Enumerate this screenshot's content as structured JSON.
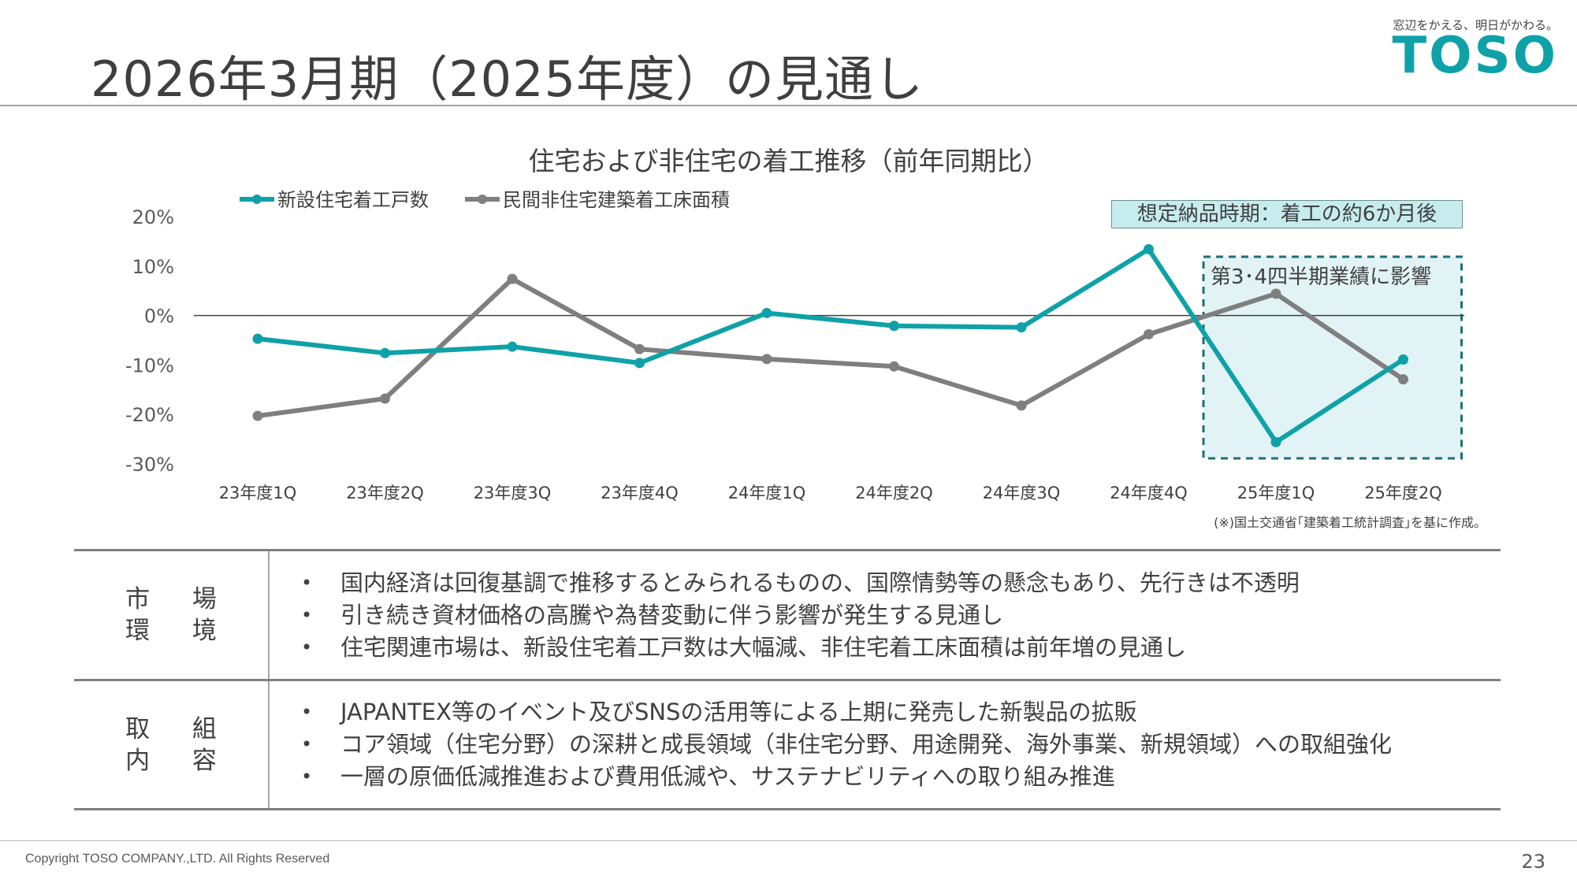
{
  "page": {
    "title": "2026年3月期（2025年度）の見通し",
    "logo_tagline": "窓辺をかえる、明日がかわる。",
    "logo_text": "TOSO",
    "page_number": "23",
    "copyright": "Copyright TOSO COMPANY.,LTD. All Rights Reserved"
  },
  "colors": {
    "teal": "#0fa1a8",
    "gray": "#7f7f7f",
    "highlight_fill": "#e1f3f5",
    "label_fill": "#c7ecee"
  },
  "chart_data": {
    "type": "line",
    "title": "住宅および非住宅の着工推移（前年同期比）",
    "categories": [
      "23年度1Q",
      "23年度2Q",
      "23年度3Q",
      "23年度4Q",
      "24年度1Q",
      "24年度2Q",
      "24年度3Q",
      "24年度4Q",
      "25年度1Q",
      "25年度2Q"
    ],
    "ylim": [
      -30,
      20
    ],
    "y_ticks": [
      "20%",
      "10%",
      "0%",
      "-10%",
      "-20%",
      "-30%"
    ],
    "y_tick_values": [
      20,
      10,
      0,
      -10,
      -20,
      -30
    ],
    "legend_position": "top-left",
    "series": [
      {
        "name": "新設住宅着工戸数",
        "color": "#0fa1a8",
        "values": [
          -4.7,
          -7.6,
          -6.3,
          -9.6,
          0.5,
          -2.1,
          -2.4,
          13.4,
          -25.6,
          -8.9
        ]
      },
      {
        "name": "民間非住宅建築着工床面積",
        "color": "#7f7f7f",
        "values": [
          -20.3,
          -16.8,
          7.4,
          -6.8,
          -8.8,
          -10.3,
          -18.2,
          -3.8,
          4.4,
          -12.9
        ]
      }
    ],
    "highlight": {
      "from_category": "25年度1Q",
      "to_category": "25年度2Q",
      "label": "第3･4四半期業績に影響"
    },
    "callout": "想定納品時期：着工の約6か月後",
    "note": "(※)国土交通省｢建築着工統計調査｣を基に作成。"
  },
  "table": {
    "rows": [
      {
        "heading_line1": "市 場",
        "heading_line2": "環 境",
        "items": [
          "国内経済は回復基調で推移するとみられるものの、国際情勢等の懸念もあり、先行きは不透明",
          "引き続き資材価格の高騰や為替変動に伴う影響が発生する見通し",
          "住宅関連市場は、新設住宅着工戸数は大幅減、非住宅着工床面積は前年増の見通し"
        ]
      },
      {
        "heading_line1": "取 組",
        "heading_line2": "内 容",
        "items": [
          "JAPANTEX等のイベント及びSNSの活用等による上期に発売した新製品の拡販",
          "コア領域（住宅分野）の深耕と成長領域（非住宅分野、用途開発、海外事業、新規領域）への取組強化",
          "一層の原価低減推進および費用低減や、サステナビリティへの取り組み推進"
        ]
      }
    ]
  }
}
